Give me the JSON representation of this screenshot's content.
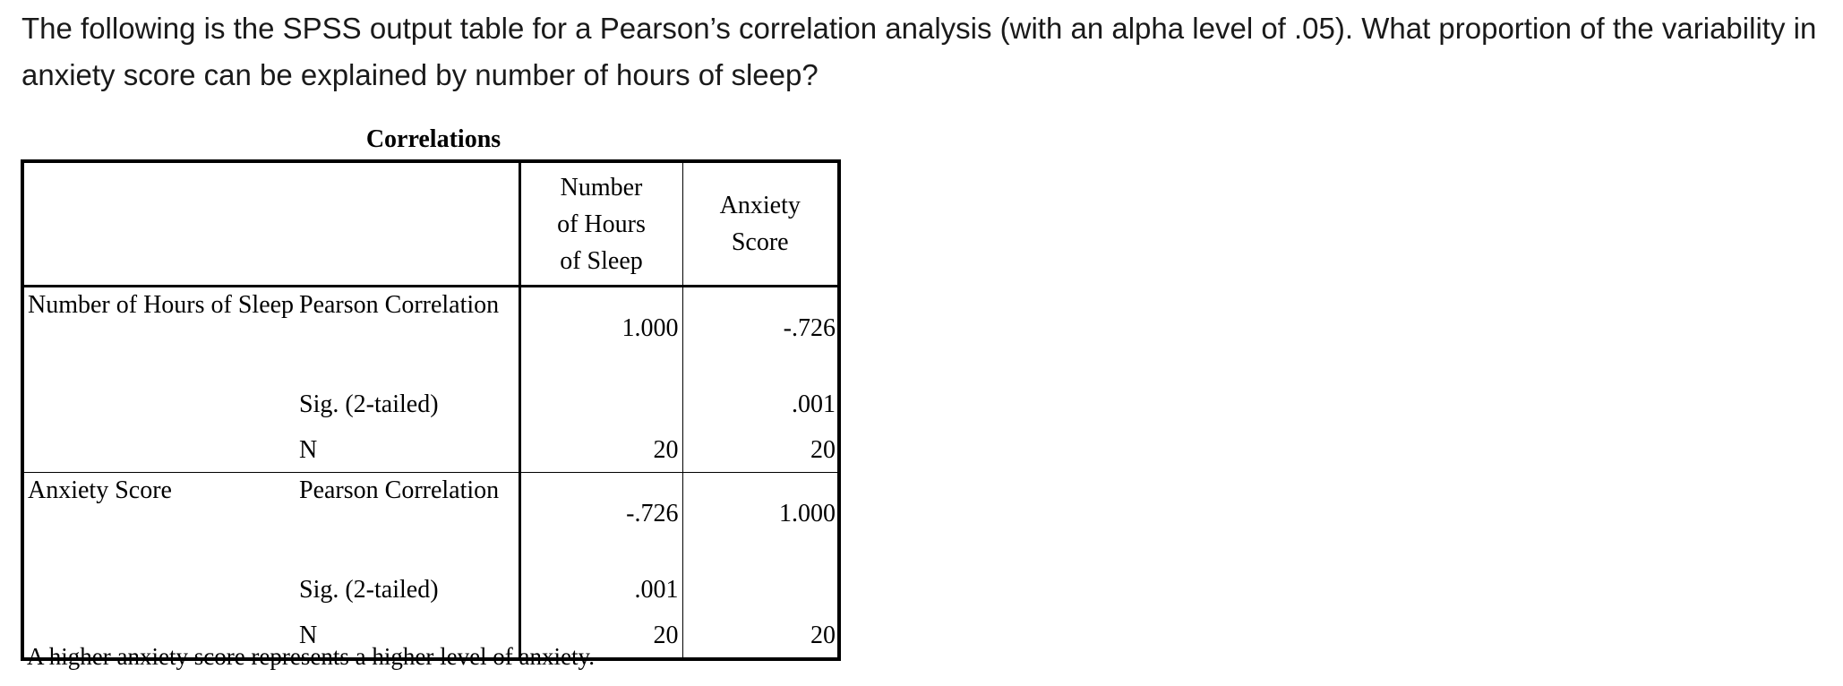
{
  "question": "The following is the SPSS output table for a Pearson’s correlation analysis (with an alpha level of .05). What proportion of the variability in anxiety score can be explained by number of hours of sleep?",
  "table": {
    "title": "Correlations",
    "columns": [
      "Number of Hours of Sleep",
      "Anxiety Score"
    ],
    "rows": [
      {
        "variable": "Number of Hours of Sleep",
        "stats": [
          {
            "label": "Pearson Correlation",
            "values": [
              "1.000",
              "-.726"
            ]
          },
          {
            "label": "Sig. (2-tailed)",
            "values": [
              "",
              ".001"
            ]
          },
          {
            "label": "N",
            "values": [
              "20",
              "20"
            ]
          }
        ]
      },
      {
        "variable": "Anxiety Score",
        "stats": [
          {
            "label": "Pearson Correlation",
            "values": [
              "-.726",
              "1.000"
            ]
          },
          {
            "label": "Sig. (2-tailed)",
            "values": [
              ".001",
              ""
            ]
          },
          {
            "label": "N",
            "values": [
              "20",
              "20"
            ]
          }
        ]
      }
    ],
    "footnote": "A higher anxiety score represents a higher level of anxiety."
  }
}
